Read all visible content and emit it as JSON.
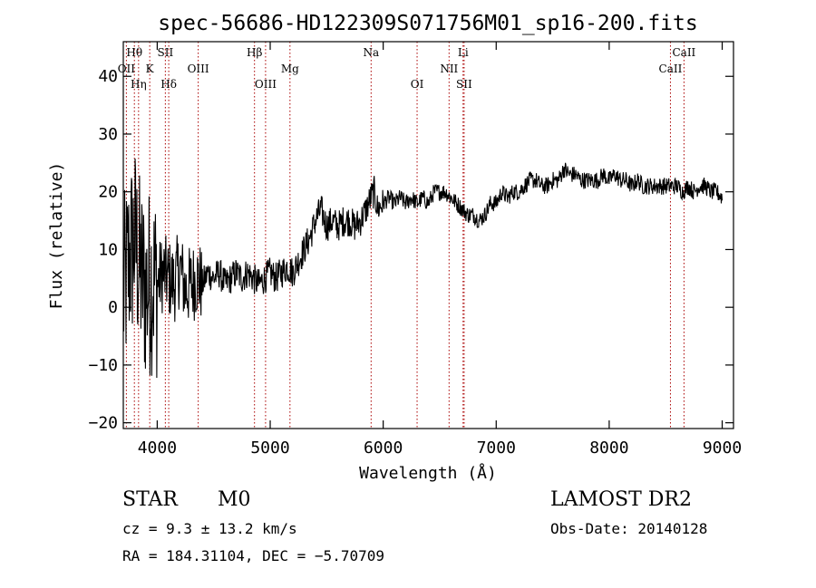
{
  "chart_data": {
    "type": "line",
    "title": "spec-56686-HD122309S071756M01_sp16-200.fits",
    "xlabel": "Wavelength (Å)",
    "ylabel": "Flux (relative)",
    "xlim": [
      3700,
      9100
    ],
    "ylim": [
      -21,
      46
    ],
    "xticks": [
      4000,
      5000,
      6000,
      7000,
      8000,
      9000
    ],
    "yticks": [
      -20,
      -10,
      0,
      10,
      20,
      30,
      40
    ],
    "ytick_labels": [
      "−20",
      "−10",
      "0",
      "10",
      "20",
      "30",
      "40"
    ],
    "line_color": "#000000",
    "marker_color": "#aa0000",
    "spectrum": {
      "x": [
        3700,
        3750,
        3800,
        3850,
        3900,
        3950,
        4000,
        4050,
        4100,
        4150,
        4200,
        4250,
        4300,
        4350,
        4400,
        4450,
        4500,
        4550,
        4600,
        4650,
        4700,
        4750,
        4800,
        4850,
        4900,
        4950,
        5000,
        5050,
        5100,
        5150,
        5200,
        5250,
        5300,
        5350,
        5400,
        5450,
        5500,
        5550,
        5600,
        5650,
        5700,
        5750,
        5800,
        5850,
        5890,
        5920,
        5950,
        6000,
        6050,
        6100,
        6150,
        6200,
        6250,
        6300,
        6350,
        6400,
        6450,
        6500,
        6550,
        6600,
        6650,
        6700,
        6750,
        6800,
        6850,
        6900,
        6950,
        7000,
        7050,
        7100,
        7150,
        7200,
        7250,
        7300,
        7350,
        7400,
        7450,
        7500,
        7550,
        7600,
        7650,
        7700,
        7750,
        7800,
        7850,
        7900,
        7950,
        8000,
        8050,
        8100,
        8150,
        8200,
        8250,
        8300,
        8350,
        8400,
        8450,
        8500,
        8550,
        8600,
        8650,
        8700,
        8750,
        8800,
        8850,
        8900,
        8950,
        9000
      ],
      "y": [
        2,
        8,
        12,
        6,
        3,
        5,
        4,
        6,
        5,
        4,
        7,
        3,
        4,
        5,
        4,
        6,
        5,
        6,
        4,
        5,
        6,
        5,
        6,
        5,
        4,
        5,
        6,
        5,
        6,
        7,
        6,
        8,
        10,
        12,
        15,
        17,
        14,
        15,
        14,
        15,
        15,
        14,
        15,
        17,
        19,
        20,
        17,
        18,
        19,
        18,
        19,
        18,
        19,
        18,
        19,
        18,
        20,
        20,
        20,
        19,
        18,
        17,
        16,
        16,
        15,
        16,
        18,
        18,
        20,
        19,
        20,
        20,
        21,
        22,
        22,
        21,
        21,
        22,
        22,
        24,
        23,
        23,
        22,
        22,
        22,
        22,
        23,
        22,
        23,
        22,
        22,
        21,
        22,
        21,
        21,
        21,
        21,
        21,
        21,
        21,
        20,
        21,
        20,
        21,
        21,
        20,
        20,
        19
      ]
    },
    "lines": [
      {
        "label": "Hθ",
        "wl": 3798,
        "row": 1
      },
      {
        "label": "OII",
        "wl": 3727,
        "row": 2
      },
      {
        "label": "Hη",
        "wl": 3835,
        "row": 3
      },
      {
        "label": "K",
        "wl": 3934,
        "row": 2
      },
      {
        "label": "SII",
        "wl": 4072,
        "row": 1
      },
      {
        "label": "Hδ",
        "wl": 4102,
        "row": 3
      },
      {
        "label": "OIII",
        "wl": 4363,
        "row": 2
      },
      {
        "label": "Hβ",
        "wl": 4861,
        "row": 1
      },
      {
        "label": "OIII",
        "wl": 4959,
        "row": 3
      },
      {
        "label": "Mg",
        "wl": 5175,
        "row": 2
      },
      {
        "label": "Na",
        "wl": 5893,
        "row": 1
      },
      {
        "label": "OI",
        "wl": 6300,
        "row": 3
      },
      {
        "label": "NII",
        "wl": 6583,
        "row": 2
      },
      {
        "label": "Li",
        "wl": 6707,
        "row": 1
      },
      {
        "label": "SII",
        "wl": 6716,
        "row": 3
      },
      {
        "label": "CaII",
        "wl": 8542,
        "row": 2
      },
      {
        "label": "CaII",
        "wl": 8662,
        "row": 1
      }
    ]
  },
  "info": {
    "class": "STAR",
    "subclass": "M0",
    "survey": "LAMOST DR2",
    "cz": "cz = 9.3 ± 13.2 km/s",
    "obs_date": "Obs-Date: 20140128",
    "radec": "RA = 184.31104, DEC =  −5.70709"
  }
}
